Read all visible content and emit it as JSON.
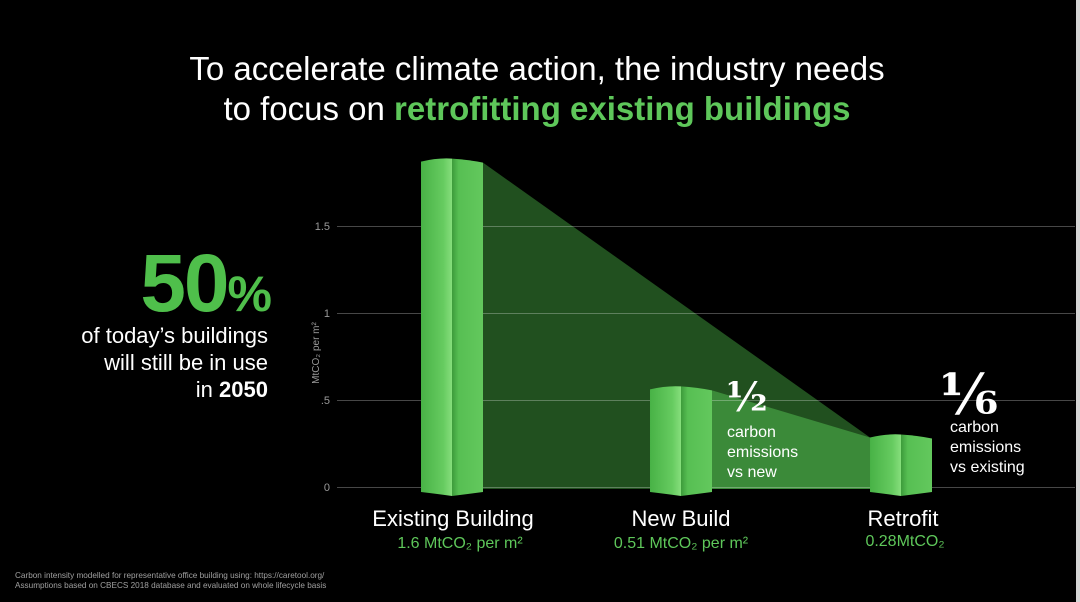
{
  "title": {
    "line1": "To accelerate climate action, the industry needs",
    "line2_prefix": "to focus on ",
    "line2_highlight": "retrofitting existing buildings"
  },
  "stat": {
    "value": "50",
    "unit": "%",
    "line1": "of today’s buildings",
    "line2": "will still be in use",
    "line3_prefix": "in ",
    "line3_year": "2050"
  },
  "annotations": {
    "new_build": {
      "fraction": "½",
      "line1": "carbon",
      "line2": "emissions",
      "line3": "vs new"
    },
    "retrofit": {
      "fraction": "⅙",
      "line1": "carbon",
      "line2": "emissions",
      "line3": "vs existing"
    }
  },
  "footnote": {
    "line1": "Carbon intensity modelled for representative office building using: https://caretool.org/",
    "line2": "Assumptions based on CBECS 2018 database and evaluated on whole lifecycle basis"
  },
  "colors": {
    "accent_green": "#5ec75a",
    "stat_green": "#4fbf4b",
    "background": "#000000",
    "text": "#ffffff"
  },
  "chart_data": {
    "type": "bar",
    "categories": [
      "Existing Building",
      "New Build",
      "Retrofit"
    ],
    "values": [
      1.6,
      0.51,
      0.28
    ],
    "value_labels": [
      "1.6 MtCO₂ per m²",
      "0.51 MtCO₂ per m²",
      "0.28MtCO₂"
    ],
    "title": "",
    "xlabel": "",
    "ylabel": "MtCO₂ per m²",
    "ylim": [
      0,
      1.5
    ],
    "yticks": [
      0,
      0.5,
      1,
      1.5
    ],
    "ytick_labels": [
      "0",
      ".5",
      "1",
      "1.5"
    ],
    "grid": true
  }
}
